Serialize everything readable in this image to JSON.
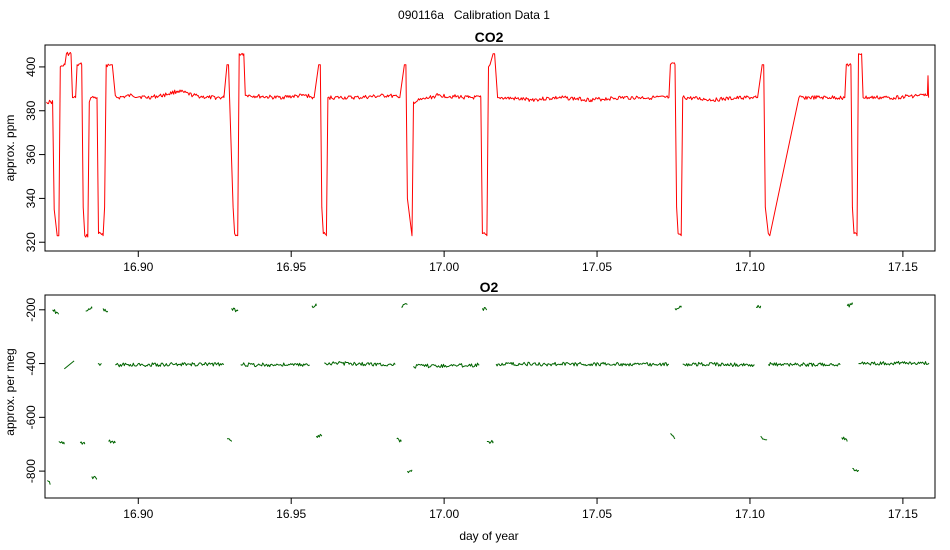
{
  "figure": {
    "title": "090116a   Calibration Data 1"
  },
  "chart_data": [
    {
      "type": "line",
      "title": "CO2",
      "xlabel": "",
      "ylabel": "approx. ppm",
      "xlim": [
        16.8695,
        17.1605
      ],
      "ylim": [
        316,
        410
      ],
      "xticks": [
        16.9,
        16.95,
        17.0,
        17.05,
        17.1,
        17.15
      ],
      "xtick_labels": [
        "16.90",
        "16.95",
        "17.00",
        "17.05",
        "17.10",
        "17.15"
      ],
      "yticks": [
        320,
        340,
        360,
        380,
        400
      ],
      "ytick_labels": [
        "320",
        "340",
        "360",
        "380",
        "400"
      ],
      "color": "#ff0000",
      "grid": false,
      "series": [
        {
          "x": [
            16.87,
            16.872,
            16.8725,
            16.8735,
            16.874,
            16.8745,
            16.876,
            16.8765,
            16.878,
            16.8785,
            16.8795,
            16.88,
            16.8815,
            16.882,
            16.8825,
            16.8835,
            16.884,
            16.8845,
            16.8865,
            16.887,
            16.8885,
            16.889,
            16.8895,
            16.891,
            16.8915,
            16.8925,
            16.893,
            16.8935,
            16.898,
            16.903,
            16.908,
            16.913,
            16.918,
            16.923,
            16.928,
            16.929,
            16.9295,
            16.931,
            16.9315,
            16.9325,
            16.933,
            16.9345,
            16.935,
            16.9355,
            16.945,
            16.955,
            16.957,
            16.9575,
            16.959,
            16.9595,
            16.96,
            16.9605,
            16.9615,
            16.962,
            16.972,
            16.982,
            16.985,
            16.9855,
            16.987,
            16.9875,
            16.988,
            16.9895,
            16.99,
            16.998,
            17.008,
            17.012,
            17.0125,
            17.014,
            17.0145,
            17.015,
            17.016,
            17.0165,
            17.0175,
            17.018,
            17.028,
            17.038,
            17.048,
            17.058,
            17.068,
            17.0735,
            17.074,
            17.0755,
            17.076,
            17.0765,
            17.0775,
            17.078,
            17.088,
            17.098,
            17.102,
            17.1025,
            17.104,
            17.1045,
            17.105,
            17.106,
            17.1065,
            17.116,
            17.126,
            17.131,
            17.1315,
            17.133,
            17.1335,
            17.134,
            17.135,
            17.1355,
            17.1365,
            17.137,
            17.147,
            17.155,
            17.1575,
            17.158,
            17.1582,
            17.1584
          ],
          "y": [
            384,
            384,
            335,
            323,
            323,
            400,
            401,
            406,
            406,
            386,
            386,
            401,
            401,
            336,
            323,
            323,
            384,
            386,
            386,
            324,
            323,
            336,
            401,
            401,
            401,
            387,
            386,
            386,
            387,
            386,
            387,
            389,
            387,
            386,
            386,
            401,
            401,
            336,
            324,
            323,
            406,
            406,
            387,
            387,
            386,
            387,
            386,
            386,
            401,
            401,
            336,
            324,
            323,
            386,
            386,
            387,
            386,
            386,
            401,
            401,
            340,
            323,
            384,
            387,
            386,
            386,
            324,
            323,
            400,
            401,
            406,
            406,
            386,
            386,
            385,
            386,
            385,
            386,
            386,
            386,
            401,
            401,
            336,
            324,
            323,
            386,
            385,
            386,
            386,
            386,
            401,
            401,
            336,
            324,
            323,
            386,
            386,
            386,
            401,
            401,
            336,
            324,
            323,
            406,
            406,
            386,
            386,
            387,
            387,
            387,
            396,
            386
          ]
        }
      ]
    },
    {
      "type": "line",
      "title": "O2",
      "xlabel": "day of year",
      "ylabel": "approx. per meg",
      "xlim": [
        16.8695,
        17.1605
      ],
      "ylim": [
        -900,
        -145
      ],
      "xticks": [
        16.9,
        16.95,
        17.0,
        17.05,
        17.1,
        17.15
      ],
      "xtick_labels": [
        "16.90",
        "16.95",
        "17.00",
        "17.05",
        "17.10",
        "17.15"
      ],
      "yticks": [
        -800,
        -600,
        -400,
        -200
      ],
      "ytick_labels": [
        "-800",
        "-600",
        "-400",
        "-200"
      ],
      "color": "#006400",
      "grid": false,
      "segments": [
        {
          "x": [
            16.8703,
            16.8712
          ],
          "y": [
            -835,
            -850
          ]
        },
        {
          "x": [
            16.872,
            16.874
          ],
          "y": [
            -200,
            -215
          ]
        },
        {
          "x": [
            16.874,
            16.8758
          ],
          "y": [
            -690,
            -700
          ]
        },
        {
          "x": [
            16.8758,
            16.879
          ],
          "y": [
            -420,
            -390
          ]
        },
        {
          "x": [
            16.881,
            16.8825
          ],
          "y": [
            -695,
            -700
          ]
        },
        {
          "x": [
            16.8828,
            16.8848
          ],
          "y": [
            -205,
            -195
          ]
        },
        {
          "x": [
            16.8848,
            16.8865
          ],
          "y": [
            -820,
            -830
          ]
        },
        {
          "x": [
            16.8868,
            16.888
          ],
          "y": [
            -400,
            -400
          ]
        },
        {
          "x": [
            16.8885,
            16.89
          ],
          "y": [
            -195,
            -205
          ]
        },
        {
          "x": [
            16.8903,
            16.8925
          ],
          "y": [
            -690,
            -695
          ]
        },
        {
          "x": [
            16.8925,
            16.928
          ],
          "y": [
            -405,
            -402
          ]
        },
        {
          "x": [
            16.929,
            16.9305
          ],
          "y": [
            -680,
            -690
          ]
        },
        {
          "x": [
            16.9305,
            16.9325
          ],
          "y": [
            -195,
            -205
          ]
        },
        {
          "x": [
            16.9335,
            16.956
          ],
          "y": [
            -404,
            -405
          ]
        },
        {
          "x": [
            16.9568,
            16.9582
          ],
          "y": [
            -185,
            -185
          ]
        },
        {
          "x": [
            16.9582,
            16.96
          ],
          "y": [
            -670,
            -670
          ]
        },
        {
          "x": [
            16.9608,
            16.984
          ],
          "y": [
            -398,
            -404
          ]
        },
        {
          "x": [
            16.9845,
            16.986
          ],
          "y": [
            -680,
            -690
          ]
        },
        {
          "x": [
            16.986,
            16.988
          ],
          "y": [
            -190,
            -180
          ]
        },
        {
          "x": [
            16.988,
            16.9895
          ],
          "y": [
            -800,
            -795
          ]
        },
        {
          "x": [
            16.99,
            17.0115
          ],
          "y": [
            -410,
            -405
          ]
        },
        {
          "x": [
            17.0125,
            17.014
          ],
          "y": [
            -195,
            -200
          ]
        },
        {
          "x": [
            17.014,
            17.016
          ],
          "y": [
            -690,
            -690
          ]
        },
        {
          "x": [
            17.017,
            17.0735
          ],
          "y": [
            -402,
            -403
          ]
        },
        {
          "x": [
            17.074,
            17.0755
          ],
          "y": [
            -660,
            -680
          ]
        },
        {
          "x": [
            17.0755,
            17.0775
          ],
          "y": [
            -195,
            -185
          ]
        },
        {
          "x": [
            17.078,
            17.1015
          ],
          "y": [
            -402,
            -405
          ]
        },
        {
          "x": [
            17.102,
            17.1035
          ],
          "y": [
            -190,
            -185
          ]
        },
        {
          "x": [
            17.1035,
            17.1055
          ],
          "y": [
            -670,
            -685
          ]
        },
        {
          "x": [
            17.106,
            17.1295
          ],
          "y": [
            -403,
            -405
          ]
        },
        {
          "x": [
            17.13,
            17.1318
          ],
          "y": [
            -675,
            -690
          ]
        },
        {
          "x": [
            17.1318,
            17.1335
          ],
          "y": [
            -185,
            -180
          ]
        },
        {
          "x": [
            17.1335,
            17.1355
          ],
          "y": [
            -790,
            -800
          ]
        },
        {
          "x": [
            17.1355,
            17.1585
          ],
          "y": [
            -400,
            -398
          ]
        }
      ]
    }
  ]
}
